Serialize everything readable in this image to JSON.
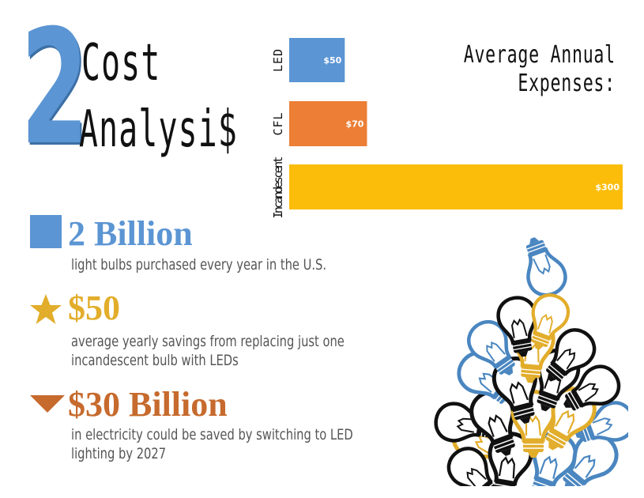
{
  "heading": {
    "number": "2",
    "line1": "Cost",
    "line2": "Analysi$"
  },
  "chart_data": {
    "type": "bar",
    "orientation": "horizontal",
    "title": "Average Annual Expenses:",
    "title_lines": [
      "Average Annual",
      "Expenses:"
    ],
    "categories": [
      "LED",
      "CFL",
      "Incandescent"
    ],
    "values": [
      50,
      70,
      300
    ],
    "value_labels": [
      "$50",
      "$70",
      "$300"
    ],
    "colors": [
      "#5b95d3",
      "#ec7e35",
      "#fbbd0a"
    ],
    "xlim": [
      0,
      300
    ],
    "grid": false,
    "legend": "none"
  },
  "stats": [
    {
      "value": "2 Billion",
      "desc_lines": [
        "light bulbs purchased every year in the U.S."
      ],
      "color": "#5b95d3",
      "marker": "square"
    },
    {
      "value": "$50",
      "desc_lines": [
        "average yearly savings from replacing just one",
        "incandescent bulb with LEDs"
      ],
      "color": "#e2ad2b",
      "marker": "star"
    },
    {
      "value": "$30 Billion",
      "desc_lines": [
        "in electricity could be saved by switching to LED",
        "lighting by 2027"
      ],
      "color": "#c66a2d",
      "marker": "triangle-down"
    }
  ],
  "art": {
    "name": "light-bulbs-pile",
    "colors": [
      "#111111",
      "#4a86c0",
      "#e2ad2b"
    ]
  }
}
